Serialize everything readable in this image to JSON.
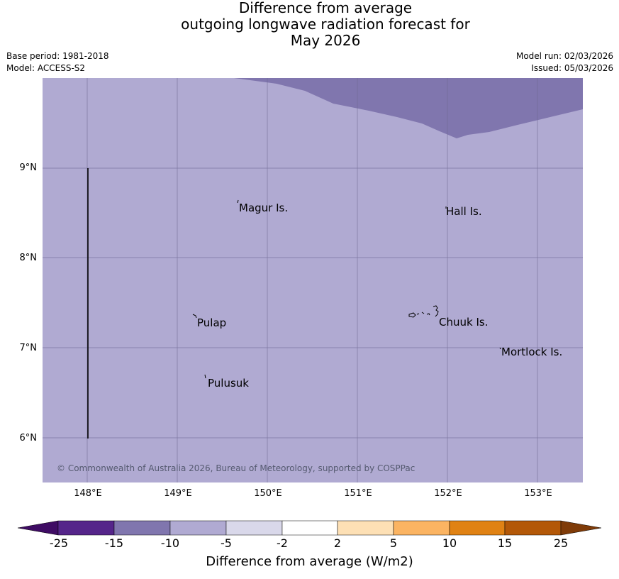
{
  "title": {
    "line1": "Difference from average",
    "line2": "outgoing longwave radiation forecast for",
    "line3": "May 2026"
  },
  "meta": {
    "base_period": "Base period: 1981-2018",
    "model": "Model: ACCESS-S2",
    "model_run": "Model run: 02/03/2026",
    "issued": "Issued: 05/03/2026"
  },
  "map": {
    "lat_labels": [
      "9°N",
      "8°N",
      "7°N",
      "6°N"
    ],
    "lon_labels": [
      "148°E",
      "149°E",
      "150°E",
      "151°E",
      "152°E",
      "153°E"
    ],
    "places": [
      "Magur Is.",
      "Hall Is.",
      "Pulap",
      "Chuuk Is.",
      "Mortlock Is.",
      "Pulusuk"
    ],
    "copyright": "© Commonwealth of Australia 2026, Bureau of Meteorology, supported by COSPPac",
    "colors": {
      "main_fill": "#b0aad2",
      "upper_fill": "#8076ae",
      "grid": "#6f6a94"
    }
  },
  "colorbar": {
    "ticks": [
      "-25",
      "-15",
      "-10",
      "-5",
      "-2",
      "2",
      "5",
      "10",
      "15",
      "25"
    ],
    "colors": [
      "#3f0c64",
      "#55258a",
      "#8076ae",
      "#b0aad2",
      "#d9d8ea",
      "#ffffff",
      "#fde0b5",
      "#fbb462",
      "#e08214",
      "#b35808",
      "#7f3b08"
    ],
    "label": "Difference from average (W/m2)"
  }
}
